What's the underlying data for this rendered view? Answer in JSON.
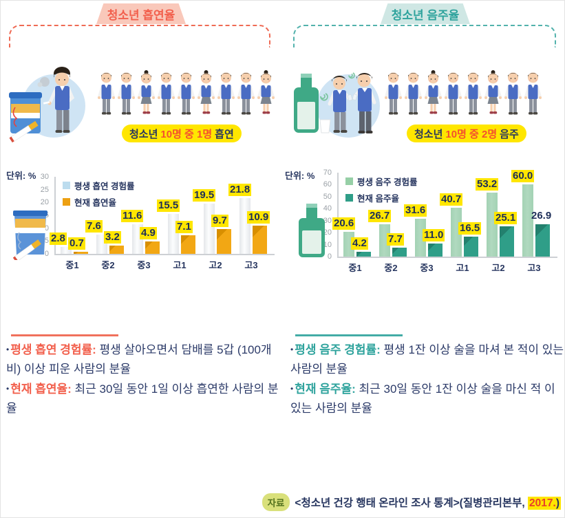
{
  "left_panel": {
    "tab": "청소년 흡연율",
    "unit_label": "단위: %",
    "badge": {
      "prefix": "청소년",
      "highlight": "10명 중 1명",
      "suffix": "흡연"
    },
    "figures": [
      "boy",
      "boy",
      "girl",
      "boy",
      "boy",
      "girl",
      "boy",
      "boy",
      "girl"
    ],
    "definitions": [
      {
        "term": "평생 흡연 경험률:",
        "desc": " 평생 살아오면서 담배를 5갑 (100개비) 이상 피운 사람의 분율"
      },
      {
        "term": "현재 흡연율:",
        "desc": " 최근 30일 동안 1일 이상 흡연한 사람의 분율"
      }
    ],
    "colors": {
      "accent": "#f2604d",
      "tab_bg": "#f9c8ba",
      "dashed": "#ef6a54"
    }
  },
  "right_panel": {
    "tab": "청소년 음주율",
    "unit_label": "단위: %",
    "badge": {
      "prefix": "청소년",
      "highlight": "10명 중 2명",
      "suffix": "음주"
    },
    "figures": [
      "boy",
      "boy",
      "girl",
      "boy",
      "boy",
      "girl",
      "boy",
      "boy"
    ],
    "definitions": [
      {
        "term": "평생 음주 경험률:",
        "desc": " 평생 1잔 이상 술을 마셔 본 적이 있는 사람의 분율"
      },
      {
        "term": "현재 음주율:",
        "desc": " 최근 30일 동안 1잔 이상 술을 마신 적 이 있는 사람의 분율"
      }
    ],
    "colors": {
      "accent": "#2fa39d",
      "tab_bg": "#cfe7e4",
      "dashed": "#52b2ac"
    }
  },
  "chart_data": [
    {
      "type": "bar",
      "title": "청소년 흡연율",
      "unit": "%",
      "categories": [
        "중1",
        "중2",
        "중3",
        "고1",
        "고2",
        "고3"
      ],
      "series": [
        {
          "name": "평생 흡연 경험률",
          "values": [
            2.8,
            7.6,
            11.6,
            15.5,
            19.5,
            21.8
          ],
          "labels": [
            "2.8",
            "7.6",
            "11.6",
            "15.5",
            "19.5",
            "21.8"
          ],
          "color": "#fcfdfe",
          "edge_shade": "#e4e7ea",
          "legend_color": "#bcdcee"
        },
        {
          "name": "현재 흡연율",
          "values": [
            0.7,
            3.2,
            4.9,
            7.1,
            9.7,
            10.9
          ],
          "labels": [
            "0.7",
            "3.2",
            "4.9",
            "7.1",
            "9.7",
            "10.9"
          ],
          "color": "#f2a714",
          "corner_shade": "#d88f00",
          "legend_color": "#eda012"
        }
      ],
      "ylim": [
        0,
        30
      ],
      "yticks": [
        0,
        5,
        10,
        15,
        20,
        25,
        30
      ],
      "legend_position": "top-left",
      "grid": false,
      "label_highlight": "#ffe600",
      "plain_labels": []
    },
    {
      "type": "bar",
      "title": "청소년 음주율",
      "unit": "%",
      "categories": [
        "중1",
        "중2",
        "중3",
        "고1",
        "고2",
        "고3"
      ],
      "series": [
        {
          "name": "평생 음주 경험률",
          "values": [
            20.6,
            26.7,
            31.6,
            40.7,
            53.2,
            60.0
          ],
          "labels": [
            "20.6",
            "26.7",
            "31.6",
            "40.7",
            "53.2",
            "60.0"
          ],
          "color": "#b0d9bf",
          "edge_shade": "#a3d2b4",
          "legend_color": "#96cfa6"
        },
        {
          "name": "현재 음주율",
          "values": [
            4.2,
            7.7,
            11.0,
            16.5,
            25.1,
            26.9
          ],
          "labels": [
            "4.2",
            "7.7",
            "11.0",
            "16.5",
            "25.1",
            "26.9"
          ],
          "color": "#2f9e88",
          "corner_shade": "#23806e",
          "legend_color": "#2f9e88"
        }
      ],
      "ylim": [
        0,
        70
      ],
      "yticks": [
        0,
        10,
        20,
        30,
        40,
        50,
        60,
        70
      ],
      "legend_position": "top-left",
      "grid": false,
      "label_highlight": "#ffe600",
      "plain_labels": [
        {
          "series": 1,
          "index": 5
        }
      ]
    }
  ],
  "source": {
    "badge": "자료",
    "text": "<청소년 건강 행태 온라인 조사 통계>(질병관리본부, ",
    "year": "2017.",
    "closing": ")"
  }
}
